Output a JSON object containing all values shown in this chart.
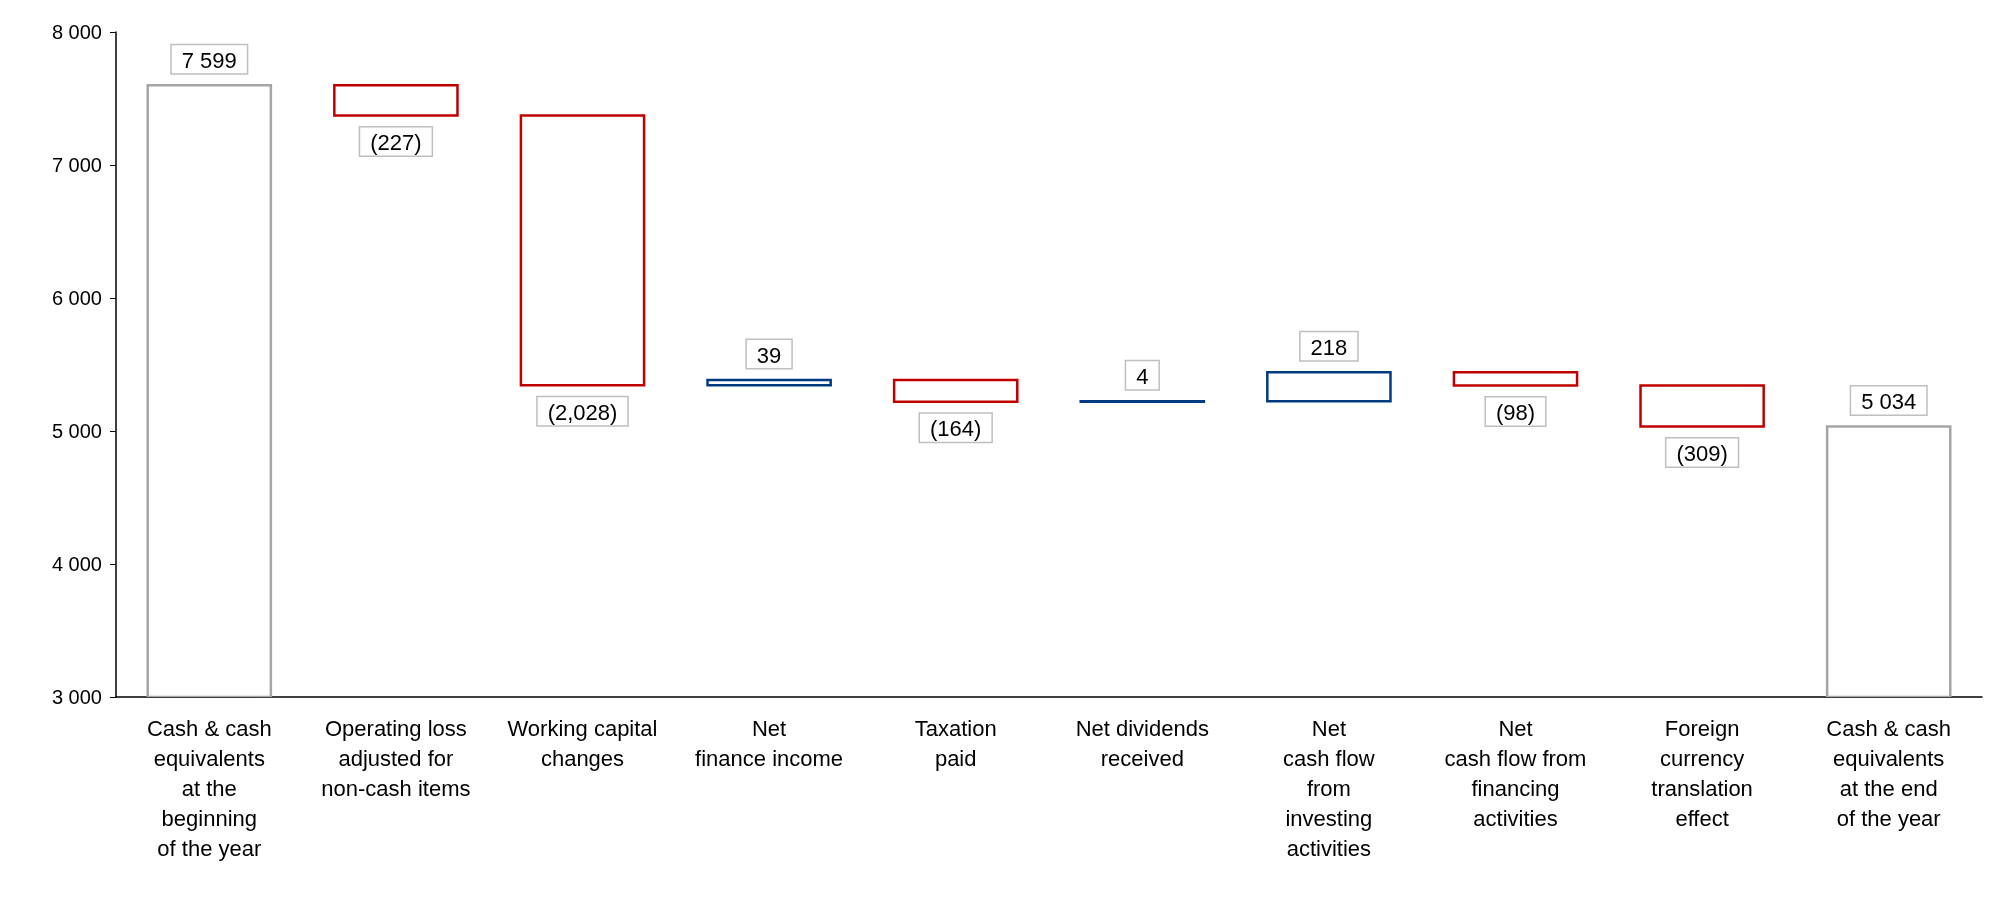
{
  "chart_data": {
    "type": "bar",
    "categories": [
      "Cash & cash\nequivalents\nat the\nbeginning\nof the year",
      "Operating loss\nadjusted for\nnon-cash items",
      "Working capital\nchanges",
      "Net\nfinance income",
      "Taxation\npaid",
      "Net dividends\nreceived",
      "Net\ncash flow\nfrom\ninvesting\nactivities",
      "Net\ncash flow from\nfinancing\nactivities",
      "Foreign\ncurrency\ntranslation\neffect",
      "Cash & cash\nequivalents\nat the end\nof the year"
    ],
    "values": [
      7599,
      -227,
      -2028,
      39,
      -164,
      4,
      218,
      -98,
      -309,
      5034
    ],
    "base": [
      null,
      7599,
      7372,
      5344,
      5383,
      5219,
      5223,
      5441,
      5343,
      null
    ],
    "colors": [
      "#a6a6a6",
      "#c00000",
      "#c00000",
      "#003a80",
      "#c00000",
      "#003a80",
      "#003a80",
      "#c00000",
      "#c00000",
      "#a6a6a6"
    ],
    "value_labels": [
      "7 599",
      "(227)",
      "(2,028)",
      "39",
      "(164)",
      "4",
      "218",
      "(98)",
      "(309)",
      "5 034"
    ],
    "ylim": [
      3000,
      8000
    ],
    "yticks": [
      {
        "value": 3000,
        "label": "3 000"
      },
      {
        "value": 4000,
        "label": "4 000"
      },
      {
        "value": 5000,
        "label": "5 000"
      },
      {
        "value": 6000,
        "label": "6 000"
      },
      {
        "value": 7000,
        "label": "7 000"
      },
      {
        "value": 8000,
        "label": "8 000"
      }
    ]
  }
}
